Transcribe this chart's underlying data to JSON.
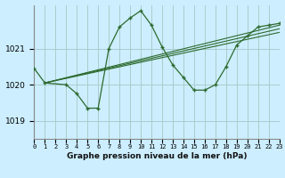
{
  "background_color": "#cceeff",
  "grid_color": "#aacccc",
  "line_color": "#2d6a2d",
  "title": "Graphe pression niveau de la mer (hPa)",
  "xlim": [
    0,
    23
  ],
  "ylim": [
    1018.5,
    1022.2
  ],
  "yticks": [
    1019,
    1020,
    1021
  ],
  "xtick_labels": [
    "0",
    "1",
    "2",
    "3",
    "4",
    "5",
    "6",
    "7",
    "8",
    "9",
    "10",
    "11",
    "12",
    "13",
    "14",
    "15",
    "16",
    "17",
    "18",
    "19",
    "20",
    "21",
    "22",
    "23"
  ],
  "series_main": {
    "x": [
      0,
      1,
      3,
      4,
      5,
      6,
      7,
      8,
      9,
      10,
      11,
      12,
      13,
      14,
      15,
      16,
      17,
      18,
      19,
      20,
      21,
      22,
      23
    ],
    "y": [
      1020.45,
      1020.05,
      1020.0,
      1019.75,
      1019.35,
      1019.35,
      1021.0,
      1021.6,
      1021.85,
      1022.05,
      1021.65,
      1021.05,
      1020.55,
      1020.2,
      1019.85,
      1019.85,
      1020.0,
      1020.5,
      1021.1,
      1021.35,
      1021.6,
      1021.65,
      1021.7
    ]
  },
  "series_smooth1": {
    "x": [
      1,
      23
    ],
    "y": [
      1020.05,
      1021.65
    ]
  },
  "series_smooth2": {
    "x": [
      1,
      23
    ],
    "y": [
      1020.05,
      1021.55
    ]
  },
  "series_smooth3": {
    "x": [
      1,
      23
    ],
    "y": [
      1020.05,
      1021.45
    ]
  }
}
